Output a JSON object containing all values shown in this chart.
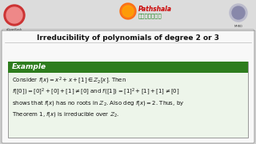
{
  "title": "Irreducibility of polynomials of degree 2 or 3",
  "title_fontsize": 6.5,
  "outer_bg": "#d0d0d0",
  "header_bg": "#e8e8e8",
  "main_bg": "#f5f5f5",
  "box_bg": "#ffffff",
  "box_border": "#bbbbbb",
  "example_header_bg": "#2e7d1e",
  "example_header_text": "Example",
  "example_header_color": "#ffffff",
  "example_header_fontsize": 6.5,
  "body_fontsize": 5.0,
  "line1": "Consider $f(x) = x^2 + x + [1] \\in \\mathbb{Z}_2[x]$. Then",
  "line2": "$f([0]) = [0]^2 + [0] + [1] \\neq [0]$ and $f([1]) = [1]^2 + [1] + [1] \\neq [0]$",
  "line3": "shows that $f(x)$ has no roots in $\\mathbb{Z}_2$. Also deg $f(x) = 2$. Thus, by",
  "line4": "Theorem 1, $f(x)$ is irreducible over $\\mathbb{Z}_2$.",
  "inner_box_fill": "#edf5ea",
  "title_color": "#111111",
  "header_strip_color": "#cbcbcb",
  "top_bar_color": "#e0e0e0",
  "logo_circle_color": "#cc2222",
  "pathshala_red": "#cc0000",
  "pathshala_green": "#228822",
  "mhrd_color": "#444444"
}
